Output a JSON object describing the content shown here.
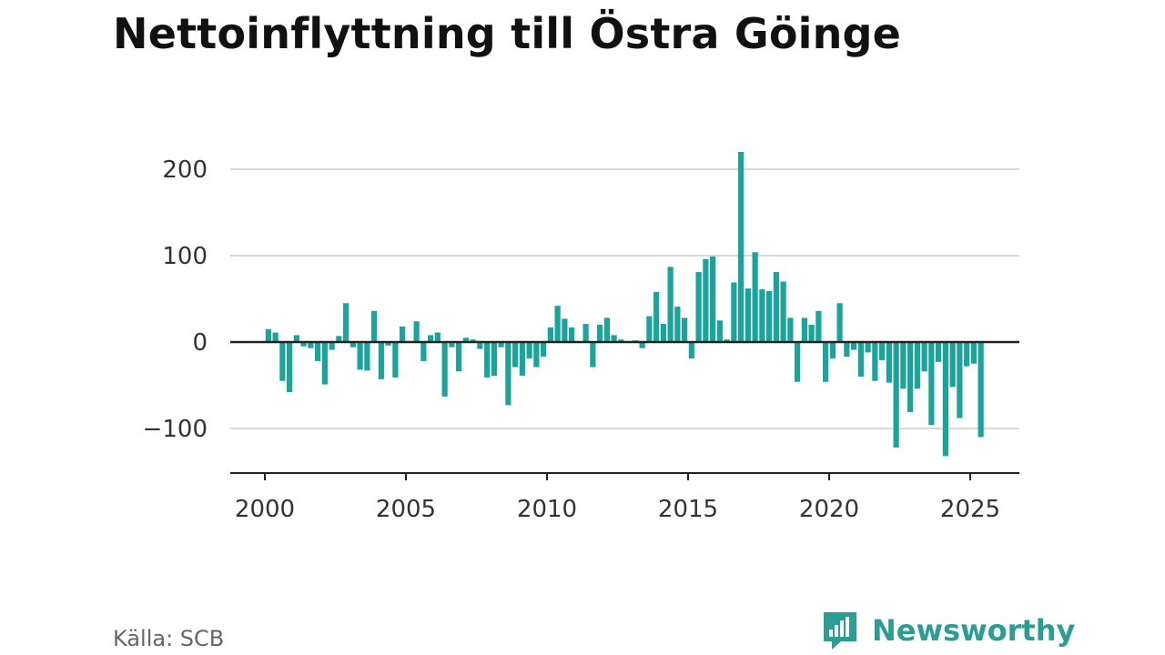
{
  "title": "Nettoinflyttning till Östra Göinge",
  "source": "Källa: SCB",
  "brand": {
    "name": "Newsworthy",
    "icon": "newsworthy-logo-icon"
  },
  "colors": {
    "bar": "#19a59b",
    "brand": "#2b9e94",
    "grid": "#d9d9d9",
    "axis": "#222222"
  },
  "chart_data": {
    "type": "bar",
    "title": "Nettoinflyttning till Östra Göinge",
    "xlabel": "",
    "ylabel": "",
    "ylim": [
      -152,
      230
    ],
    "xlim": [
      1998.8,
      2026.9
    ],
    "grid": true,
    "x_ticks": [
      2000,
      2005,
      2010,
      2015,
      2020,
      2025
    ],
    "y_ticks": [
      -100,
      0,
      100,
      200
    ],
    "y_tick_labels": [
      "−100",
      "0",
      "100",
      "200"
    ],
    "series": [
      {
        "x": [
          2000.125,
          2000.375,
          2000.625,
          2000.875,
          2001.125,
          2001.375,
          2001.625,
          2001.875,
          2002.125,
          2002.375,
          2002.625,
          2002.875,
          2003.125,
          2003.375,
          2003.625,
          2003.875,
          2004.125,
          2004.375,
          2004.625,
          2004.875,
          2005.125,
          2005.375,
          2005.625,
          2005.875,
          2006.125,
          2006.375,
          2006.625,
          2006.875,
          2007.125,
          2007.375,
          2007.625,
          2007.875,
          2008.125,
          2008.375,
          2008.625,
          2008.875,
          2009.125,
          2009.375,
          2009.625,
          2009.875,
          2010.125,
          2010.375,
          2010.625,
          2010.875,
          2011.125,
          2011.375,
          2011.625,
          2011.875,
          2012.125,
          2012.375,
          2012.625,
          2012.875,
          2013.125,
          2013.375,
          2013.625,
          2013.875,
          2014.125,
          2014.375,
          2014.625,
          2014.875,
          2015.125,
          2015.375,
          2015.625,
          2015.875,
          2016.125,
          2016.375,
          2016.625,
          2016.875,
          2017.125,
          2017.375,
          2017.625,
          2017.875,
          2018.125,
          2018.375,
          2018.625,
          2018.875,
          2019.125,
          2019.375,
          2019.625,
          2019.875,
          2020.125,
          2020.375,
          2020.625,
          2020.875,
          2021.125,
          2021.375,
          2021.625,
          2021.875,
          2022.125,
          2022.375,
          2022.625,
          2022.875,
          2023.125,
          2023.375,
          2023.625,
          2023.875,
          2024.125,
          2024.375,
          2024.625,
          2024.875,
          2025.125,
          2025.375
        ],
        "values": [
          15,
          11,
          -45,
          -58,
          8,
          -5,
          -7,
          -22,
          -49,
          -9,
          7,
          45,
          -6,
          -32,
          -33,
          36,
          -43,
          -4,
          -41,
          18,
          0,
          24,
          -22,
          8,
          11,
          -63,
          -6,
          -34,
          5,
          3,
          -8,
          -41,
          -39,
          -6,
          -73,
          -29,
          -39,
          -19,
          -29,
          -17,
          17,
          42,
          27,
          17,
          0,
          21,
          -29,
          20,
          28,
          8,
          3,
          0,
          2,
          -7,
          30,
          58,
          21,
          87,
          41,
          28,
          -19,
          81,
          96,
          99,
          25,
          3,
          69,
          220,
          62,
          104,
          61,
          59,
          81,
          70,
          28,
          -46,
          28,
          20,
          36,
          -46,
          -19,
          45,
          -17,
          -9,
          -40,
          -12,
          -45,
          -21,
          -47,
          -122,
          -54,
          -81,
          -54,
          -34,
          -96,
          -23,
          -132,
          -52,
          -88,
          -28,
          -25,
          -110
        ]
      }
    ]
  }
}
